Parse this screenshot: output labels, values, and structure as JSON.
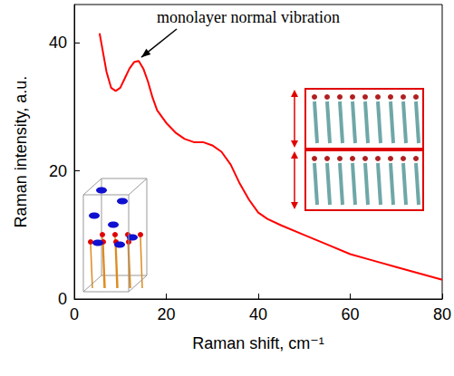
{
  "chart_data": {
    "type": "line",
    "x": [
      5.5,
      6,
      7,
      8,
      9,
      10,
      11,
      12,
      13,
      14,
      15,
      16,
      17,
      18,
      19,
      20,
      22,
      24,
      26,
      28,
      30,
      32,
      34,
      36,
      38,
      40,
      42,
      45,
      50,
      55,
      60,
      65,
      70,
      75,
      80
    ],
    "values": [
      41.5,
      39.5,
      35.5,
      33,
      32.5,
      33,
      34.5,
      36,
      37,
      37.2,
      36,
      34,
      31.5,
      29.5,
      28.5,
      27.5,
      26,
      25,
      24.5,
      24.5,
      24,
      23,
      21,
      18,
      15.5,
      13.5,
      12.5,
      11.5,
      10,
      8.5,
      7,
      6,
      5,
      4,
      3
    ],
    "color": "#ff0000",
    "xlabel": "Raman shift, cm⁻¹",
    "ylabel": "Raman intensity, a.u.",
    "xlim": [
      0,
      80
    ],
    "ylim": [
      0,
      46
    ],
    "xticks": [
      0,
      20,
      40,
      60,
      80
    ],
    "yticks": [
      0,
      20,
      40
    ],
    "grid": false,
    "annotation": {
      "text": "monolayer normal vibration",
      "x": 14,
      "y": 37.2
    }
  }
}
